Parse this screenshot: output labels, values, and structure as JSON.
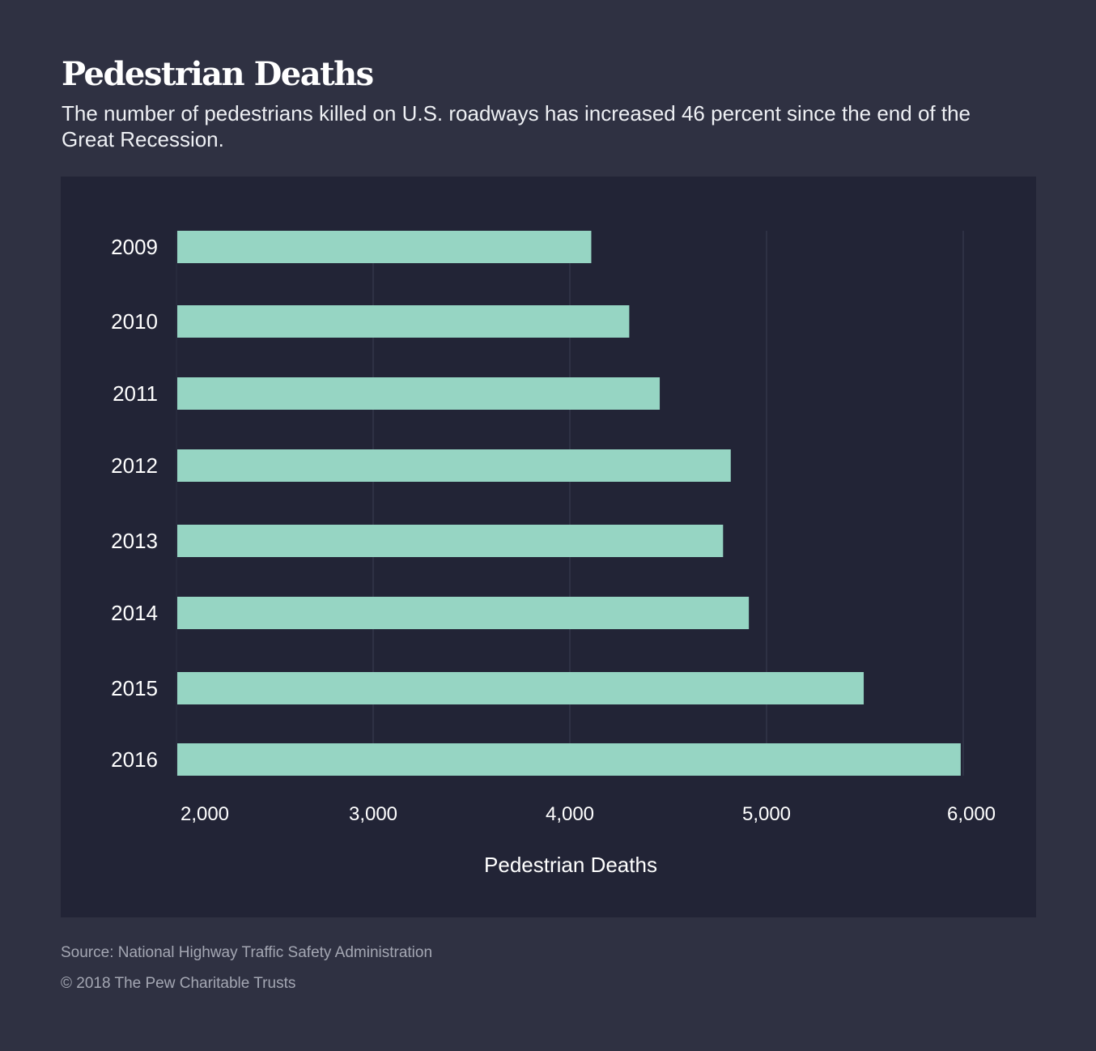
{
  "header": {
    "title": "Pedestrian Deaths",
    "subtitle": "The number of pedestrians killed on U.S. roadways has increased 46 percent since the end of the Great Recession."
  },
  "chart_data": {
    "type": "bar",
    "orientation": "horizontal",
    "categories": [
      "2009",
      "2010",
      "2011",
      "2012",
      "2013",
      "2014",
      "2015",
      "2016"
    ],
    "values": [
      4109,
      4302,
      4457,
      4818,
      4779,
      4910,
      5494,
      5987
    ],
    "xlabel": "Pedestrian Deaths",
    "ylabel": "",
    "xlim": [
      2000,
      6000
    ],
    "xticks": [
      "2,000",
      "3,000",
      "4,000",
      "5,000",
      "6,000"
    ],
    "xtick_values": [
      2000,
      3000,
      4000,
      5000,
      6000
    ],
    "grid": "vertical",
    "bar_color": "#96d5c3"
  },
  "footer": {
    "source": "Source: National Highway Traffic Safety Administration",
    "copyright": "© 2018 The Pew Charitable Trusts"
  }
}
